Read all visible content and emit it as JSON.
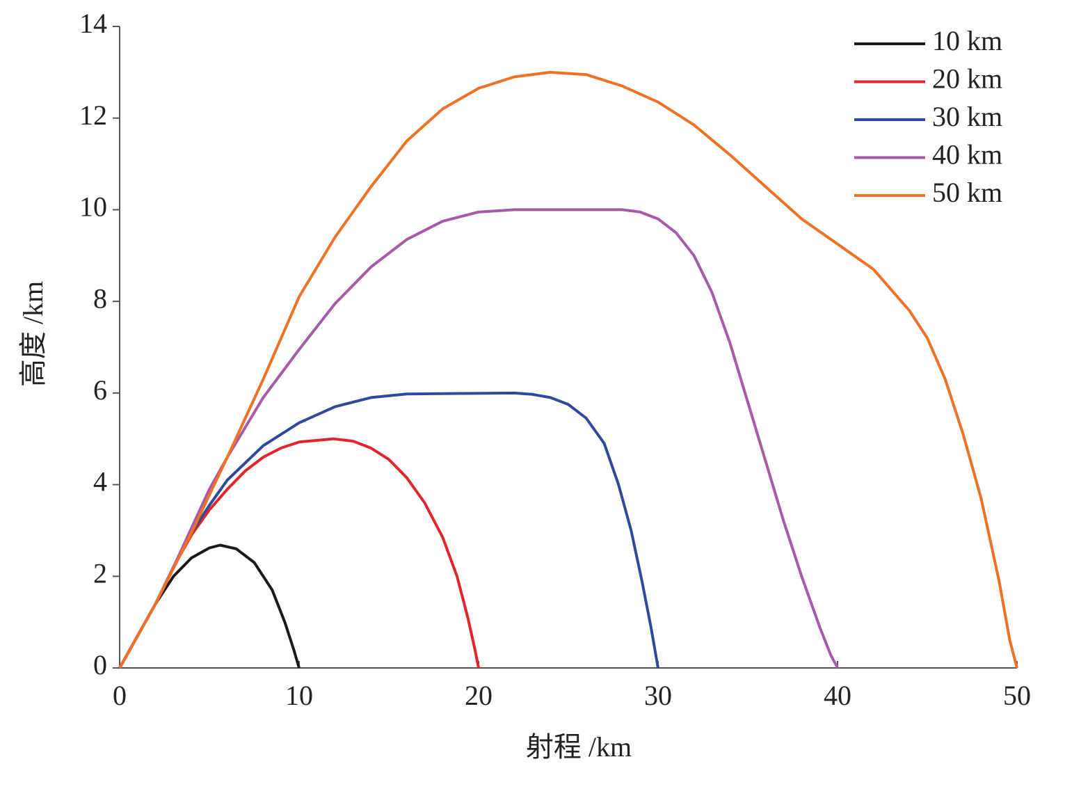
{
  "chart_data": {
    "type": "line",
    "xlabel": "射程 /km",
    "ylabel": "高度 /km",
    "xlim": [
      0,
      50
    ],
    "xticks": [
      0,
      10,
      20,
      30,
      40,
      50
    ],
    "ylim": [
      0,
      14
    ],
    "yticks": [
      0,
      2,
      4,
      6,
      8,
      10,
      12,
      14
    ],
    "grid": false,
    "legend": "upper right",
    "series": [
      {
        "name": "10 km",
        "color": "#1a1a1a",
        "x": [
          0,
          1,
          2,
          3,
          4,
          5,
          5.6,
          6.5,
          7.5,
          8.5,
          9.2,
          9.7,
          10
        ],
        "values": [
          0,
          0.7,
          1.4,
          2.0,
          2.4,
          2.62,
          2.68,
          2.6,
          2.3,
          1.7,
          1.0,
          0.4,
          0
        ]
      },
      {
        "name": "20 km",
        "color": "#e0262b",
        "x": [
          0,
          2,
          3,
          4,
          5,
          6,
          7,
          8,
          9,
          10,
          11.9,
          13,
          14,
          15,
          16,
          17,
          18,
          18.8,
          19.4,
          19.8,
          20
        ],
        "values": [
          0,
          1.4,
          2.2,
          2.9,
          3.45,
          3.9,
          4.3,
          4.6,
          4.8,
          4.93,
          5.0,
          4.95,
          4.8,
          4.55,
          4.15,
          3.6,
          2.85,
          2.0,
          1.1,
          0.4,
          0
        ]
      },
      {
        "name": "30 km",
        "color": "#2f4a9c",
        "x": [
          0,
          2,
          3,
          4,
          5,
          6,
          8,
          10,
          12,
          14,
          16,
          22,
          23,
          24,
          25,
          26,
          27,
          27.8,
          28.5,
          29.1,
          29.6,
          30
        ],
        "values": [
          0,
          1.4,
          2.2,
          2.95,
          3.55,
          4.1,
          4.85,
          5.35,
          5.7,
          5.9,
          5.98,
          6.0,
          5.97,
          5.9,
          5.75,
          5.45,
          4.9,
          4.0,
          3.0,
          1.9,
          0.9,
          0
        ]
      },
      {
        "name": "40 km",
        "color": "#a75aa8",
        "x": [
          0,
          2,
          3,
          4,
          5,
          6,
          8,
          10,
          12,
          14,
          16,
          18,
          20,
          22,
          28,
          29,
          30,
          31,
          32,
          33,
          34,
          35,
          36,
          37,
          38,
          39,
          39.6,
          40
        ],
        "values": [
          0,
          1.4,
          2.2,
          3.05,
          3.9,
          4.6,
          5.9,
          6.95,
          7.95,
          8.75,
          9.35,
          9.75,
          9.95,
          10.0,
          10.0,
          9.95,
          9.8,
          9.5,
          9.0,
          8.2,
          7.1,
          5.8,
          4.5,
          3.2,
          2.0,
          0.9,
          0.3,
          0
        ]
      },
      {
        "name": "50 km",
        "color": "#ee7226",
        "x": [
          0,
          2,
          4,
          6,
          8,
          10,
          12,
          14,
          16,
          18,
          20,
          22,
          24,
          26,
          28,
          30,
          32,
          34,
          36,
          38,
          40,
          42,
          44,
          45,
          46,
          47,
          48,
          49,
          49.6,
          50
        ],
        "values": [
          0,
          1.4,
          2.95,
          4.6,
          6.3,
          8.1,
          9.4,
          10.5,
          11.5,
          12.2,
          12.65,
          12.9,
          13.0,
          12.95,
          12.7,
          12.35,
          11.85,
          11.2,
          10.5,
          9.8,
          9.25,
          8.7,
          7.8,
          7.2,
          6.3,
          5.1,
          3.7,
          1.9,
          0.6,
          0
        ]
      }
    ]
  }
}
